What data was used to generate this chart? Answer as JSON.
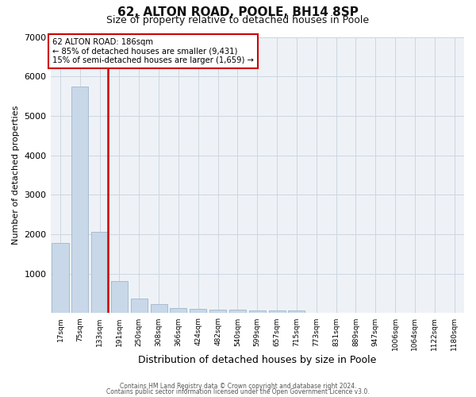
{
  "title1": "62, ALTON ROAD, POOLE, BH14 8SP",
  "title2": "Size of property relative to detached houses in Poole",
  "xlabel": "Distribution of detached houses by size in Poole",
  "ylabel": "Number of detached properties",
  "categories": [
    "17sqm",
    "75sqm",
    "133sqm",
    "191sqm",
    "250sqm",
    "308sqm",
    "366sqm",
    "424sqm",
    "482sqm",
    "540sqm",
    "599sqm",
    "657sqm",
    "715sqm",
    "773sqm",
    "831sqm",
    "889sqm",
    "947sqm",
    "1006sqm",
    "1064sqm",
    "1122sqm",
    "1180sqm"
  ],
  "values": [
    1780,
    5750,
    2060,
    820,
    370,
    235,
    130,
    100,
    90,
    88,
    70,
    65,
    65,
    0,
    0,
    0,
    0,
    0,
    0,
    0,
    0
  ],
  "bar_color": "#c8d8e8",
  "bar_edge_color": "#a8bcd0",
  "vline_color": "#cc0000",
  "annotation_line1": "62 ALTON ROAD: 186sqm",
  "annotation_line2": "← 85% of detached houses are smaller (9,431)",
  "annotation_line3": "15% of semi-detached houses are larger (1,659) →",
  "annotation_box_color": "#ffffff",
  "annotation_edge_color": "#cc0000",
  "ylim": [
    0,
    7000
  ],
  "yticks": [
    0,
    1000,
    2000,
    3000,
    4000,
    5000,
    6000,
    7000
  ],
  "footer1": "Contains HM Land Registry data © Crown copyright and database right 2024.",
  "footer2": "Contains public sector information licensed under the Open Government Licence v3.0.",
  "bg_color": "#eef2f7",
  "grid_color": "#ccd6e0",
  "title1_fontsize": 11,
  "title2_fontsize": 9,
  "xlabel_fontsize": 9,
  "ylabel_fontsize": 8
}
